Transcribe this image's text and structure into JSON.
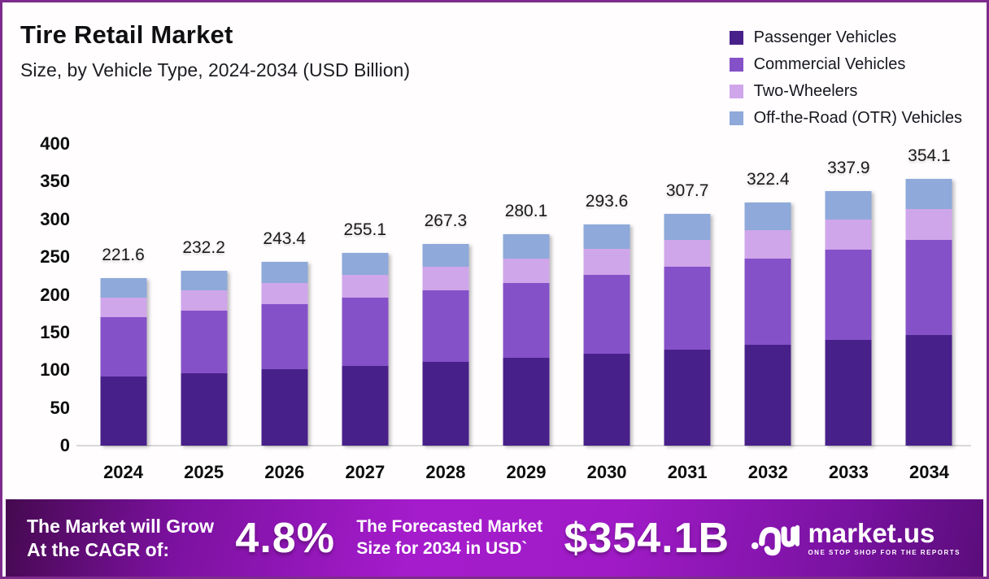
{
  "header": {
    "title": "Tire Retail Market",
    "subtitle": "Size, by Vehicle Type, 2024-2034 (USD Billion)"
  },
  "chart_data": {
    "type": "bar",
    "stacked": true,
    "title": "Tire Retail Market",
    "subtitle": "Size, by Vehicle Type, 2024-2034 (USD Billion)",
    "unit": "USD Billion",
    "categories": [
      "2024",
      "2025",
      "2026",
      "2027",
      "2028",
      "2029",
      "2030",
      "2031",
      "2032",
      "2033",
      "2034"
    ],
    "totals": [
      221.6,
      232.2,
      243.4,
      255.1,
      267.3,
      280.1,
      293.6,
      307.7,
      322.4,
      337.9,
      354.1
    ],
    "series": [
      {
        "name": "Passenger Vehicles",
        "color": "#48208a",
        "values": [
          92.0,
          96.4,
          101.0,
          105.9,
          110.9,
          116.2,
          121.8,
          127.7,
          133.8,
          140.2,
          146.9
        ]
      },
      {
        "name": "Commercial Vehicles",
        "color": "#8551c8",
        "values": [
          78.6,
          82.4,
          86.4,
          90.6,
          94.9,
          99.5,
          104.3,
          109.3,
          114.5,
          120.0,
          125.8
        ]
      },
      {
        "name": "Two-Wheelers",
        "color": "#cfa6ea",
        "values": [
          26.0,
          27.2,
          28.5,
          29.9,
          31.3,
          32.8,
          34.4,
          36.0,
          37.8,
          39.6,
          41.5
        ]
      },
      {
        "name": "Off-the-Road (OTR) Vehicles",
        "color": "#8ea9da",
        "values": [
          25.0,
          26.2,
          27.5,
          28.7,
          30.2,
          31.6,
          33.1,
          34.7,
          36.3,
          38.1,
          39.9
        ]
      }
    ],
    "segments_estimated": true,
    "ylim": [
      0,
      400
    ],
    "ytick_step": 50,
    "grid": false,
    "legend_position": "top-right",
    "bar_labels": "totals shown above each bar"
  },
  "banner": {
    "left_line1": "The Market will Grow",
    "left_line2": "At the CAGR of:",
    "cagr": "4.8%",
    "mid_line1": "The Forecasted Market",
    "mid_line2": "Size for 2034 in USD`",
    "forecast_value": "$354.1B"
  },
  "brand": {
    "name": "market.us",
    "tagline": "ONE STOP SHOP FOR THE REPORTS"
  },
  "colors": {
    "page_border": "#7d2b8c",
    "axis_line": "#d8d8d8",
    "banner_text": "#ffffff",
    "banner_gradient": [
      "#45094f",
      "#7c11a0",
      "#a51ccc",
      "#a01bc7",
      "#7a12a2",
      "#5a0d7a"
    ]
  }
}
